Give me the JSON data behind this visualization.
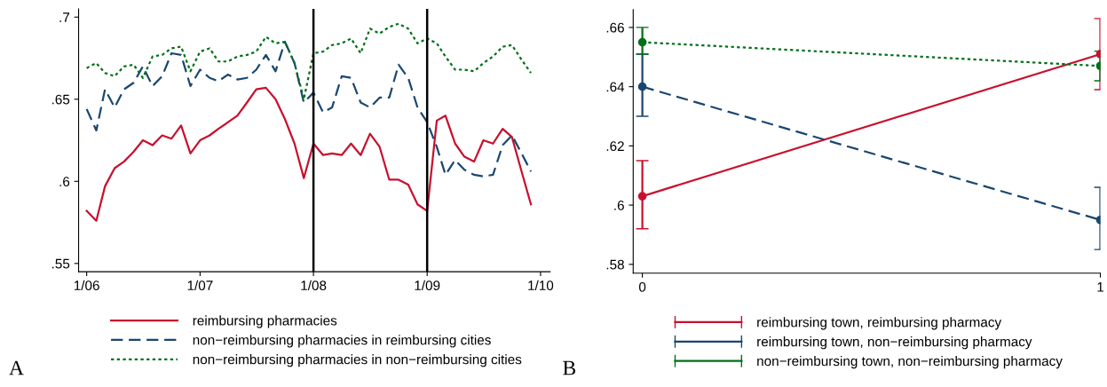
{
  "chart_data": [
    {
      "type": "line",
      "x": [
        "2006-01",
        "2006-02",
        "2006-03",
        "2006-04",
        "2006-05",
        "2006-06",
        "2006-07",
        "2006-08",
        "2006-09",
        "2006-10",
        "2006-11",
        "2006-12",
        "2007-01",
        "2007-02",
        "2007-03",
        "2007-04",
        "2007-05",
        "2007-06",
        "2007-07",
        "2007-08",
        "2007-09",
        "2007-10",
        "2007-11",
        "2007-12",
        "2008-01",
        "2008-02",
        "2008-03",
        "2008-04",
        "2008-05",
        "2008-06",
        "2008-07",
        "2008-08",
        "2008-09",
        "2008-10",
        "2008-11",
        "2008-12",
        "2009-01",
        "2009-02",
        "2009-03",
        "2009-04",
        "2009-05",
        "2009-06",
        "2009-07",
        "2009-08",
        "2009-09",
        "2009-10",
        "2009-11",
        "2009-12"
      ],
      "series": [
        {
          "name": "reimbursing pharmacies",
          "color": "#c8102e",
          "line_style": "solid",
          "values": [
            0.582,
            0.576,
            0.597,
            0.608,
            0.612,
            0.618,
            0.625,
            0.622,
            0.628,
            0.626,
            0.634,
            0.617,
            0.625,
            0.628,
            0.632,
            0.636,
            0.64,
            0.648,
            0.656,
            0.657,
            0.65,
            0.638,
            0.623,
            0.602,
            0.623,
            0.616,
            0.617,
            0.616,
            0.623,
            0.616,
            0.629,
            0.621,
            0.601,
            0.601,
            0.598,
            0.586,
            0.582,
            0.637,
            0.64,
            0.623,
            0.615,
            0.612,
            0.625,
            0.623,
            0.632,
            0.627,
            0.606,
            0.586
          ]
        },
        {
          "name": "non−reimbursing pharmacies in reimbursing cities",
          "color": "#1a476f",
          "line_style": "dashed",
          "values": [
            0.644,
            0.631,
            0.656,
            0.645,
            0.656,
            0.66,
            0.67,
            0.658,
            0.664,
            0.678,
            0.677,
            0.658,
            0.668,
            0.663,
            0.661,
            0.665,
            0.662,
            0.663,
            0.668,
            0.677,
            0.667,
            0.685,
            0.672,
            0.648,
            0.654,
            0.642,
            0.645,
            0.664,
            0.663,
            0.648,
            0.645,
            0.651,
            0.651,
            0.671,
            0.663,
            0.645,
            0.636,
            0.621,
            0.604,
            0.613,
            0.607,
            0.604,
            0.603,
            0.604,
            0.622,
            0.628,
            0.617,
            0.606
          ]
        },
        {
          "name": "non−reimbursing pharmacies in non−reimbursing cities",
          "color": "#00701a",
          "line_style": "dotted",
          "values": [
            0.669,
            0.672,
            0.666,
            0.664,
            0.67,
            0.671,
            0.663,
            0.676,
            0.677,
            0.681,
            0.682,
            0.667,
            0.679,
            0.681,
            0.673,
            0.673,
            0.676,
            0.677,
            0.679,
            0.688,
            0.684,
            0.685,
            0.672,
            0.65,
            0.678,
            0.679,
            0.683,
            0.684,
            0.687,
            0.678,
            0.693,
            0.69,
            0.694,
            0.696,
            0.693,
            0.684,
            0.687,
            0.684,
            0.676,
            0.668,
            0.668,
            0.667,
            0.672,
            0.676,
            0.682,
            0.683,
            0.674,
            0.666
          ]
        }
      ],
      "xlim": [
        "2005-12-06",
        "2010-02-01"
      ],
      "xticks": [
        {
          "value": "2006-01",
          "label": "1/06"
        },
        {
          "value": "2007-01",
          "label": "1/07"
        },
        {
          "value": "2008-01",
          "label": "1/08"
        },
        {
          "value": "2009-01",
          "label": "1/09"
        },
        {
          "value": "2010-01",
          "label": "1/10"
        }
      ],
      "ylim": [
        0.545,
        0.705
      ],
      "yticks": [
        {
          "value": 0.55,
          "label": ".55"
        },
        {
          "value": 0.6,
          "label": ".6"
        },
        {
          "value": 0.65,
          "label": ".65"
        },
        {
          "value": 0.7,
          "label": ".7"
        }
      ],
      "ref_lines": [
        {
          "axis": "x",
          "value": "2008-01",
          "color": "#000000"
        },
        {
          "axis": "x",
          "value": "2009-01",
          "color": "#000000"
        }
      ],
      "grid": false,
      "legend": "bottom",
      "marker": "none",
      "annotations": [
        "A"
      ]
    },
    {
      "type": "line",
      "x": [
        0,
        1
      ],
      "series": [
        {
          "name": "reimbursing town, reimbursing pharmacy",
          "color": "#c8102e",
          "line_style": "solid",
          "values": [
            0.603,
            0.651
          ],
          "errors": [
            [
              0.592,
              0.615
            ],
            [
              0.639,
              0.663
            ]
          ]
        },
        {
          "name": "reimbursing town, non−reimbursing pharmacy",
          "color": "#1a476f",
          "line_style": "dashed",
          "values": [
            0.64,
            0.595
          ],
          "errors": [
            [
              0.63,
              0.651
            ],
            [
              0.585,
              0.606
            ]
          ]
        },
        {
          "name": "non−reimbursing town, non−reimbursing pharmacy",
          "color": "#00701a",
          "line_style": "dotted",
          "values": [
            0.655,
            0.647
          ],
          "errors": [
            [
              0.651,
              0.66
            ],
            [
              0.642,
              0.652
            ]
          ]
        }
      ],
      "xlim": [
        -0.02,
        1.0
      ],
      "xticks": [
        0,
        1
      ],
      "ylim": [
        0.577,
        0.666
      ],
      "yticks": [
        {
          "value": 0.58,
          "label": ".58"
        },
        {
          "value": 0.6,
          "label": ".6"
        },
        {
          "value": 0.62,
          "label": ".62"
        },
        {
          "value": 0.64,
          "label": ".64"
        },
        {
          "value": 0.66,
          "label": ".66"
        }
      ],
      "grid": false,
      "legend": "bottom",
      "marker": "circle",
      "annotations": [
        "B"
      ]
    }
  ]
}
